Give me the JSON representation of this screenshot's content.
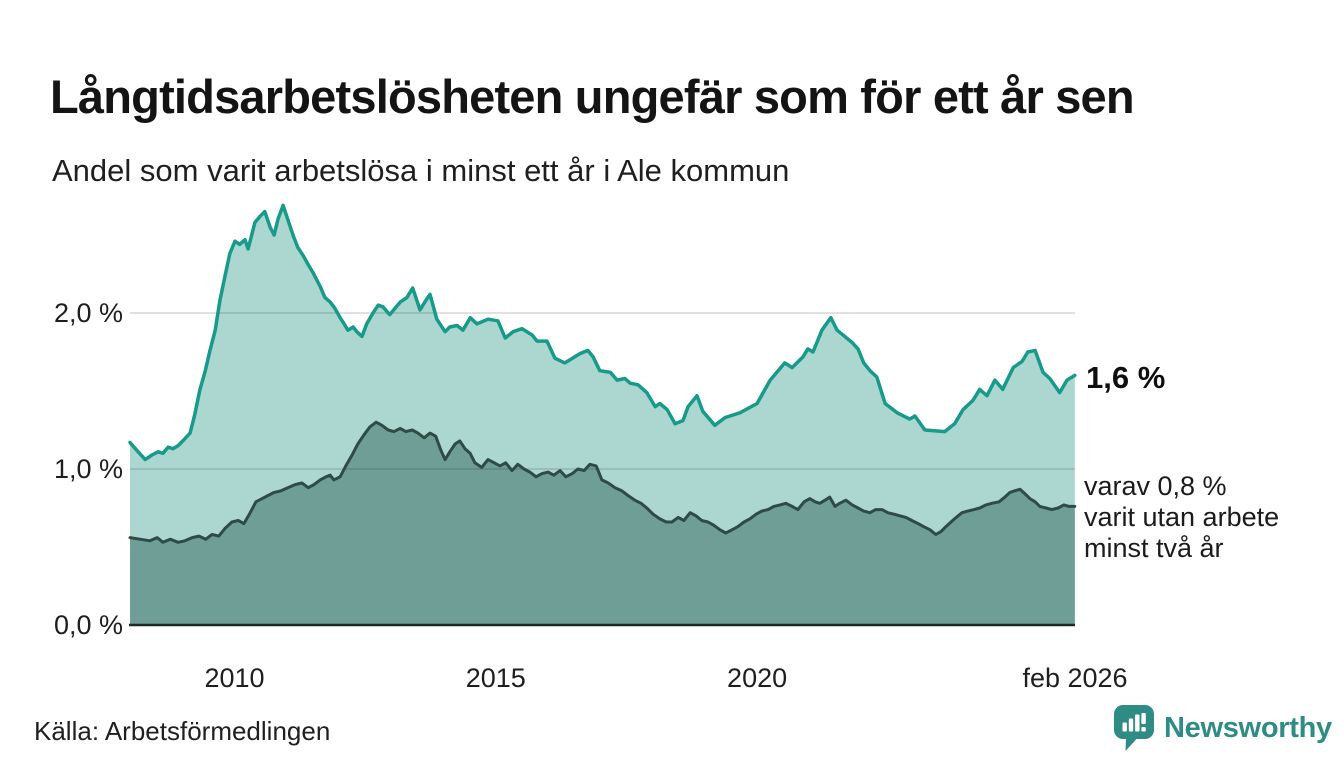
{
  "chart_data": {
    "type": "area",
    "title": "Långtidsarbetslösheten ungefär som för ett år sen",
    "subtitle": "Andel som varit arbetslösa i minst ett år i Ale kommun",
    "unit": "%",
    "x_range": [
      2008.0,
      2026.083
    ],
    "y_range": [
      0,
      2.8
    ],
    "grid": "horizontal",
    "legend_position": "none",
    "x_ticks": [
      {
        "t": 2010,
        "label": "2010"
      },
      {
        "t": 2015,
        "label": "2015"
      },
      {
        "t": 2020,
        "label": "2020"
      },
      {
        "t": 2026.083,
        "label": "feb 2026"
      }
    ],
    "y_ticks": [
      {
        "v": 0,
        "label": "0,0 %"
      },
      {
        "v": 1,
        "label": "1,0 %"
      },
      {
        "v": 2,
        "label": "2,0 %"
      }
    ],
    "series": [
      {
        "name": "Arbetslösa minst ett år",
        "color": "#189a8b",
        "fill": "#abd7d0",
        "width": 3.5,
        "last_value_label": "1,6 %",
        "points": [
          [
            2008.0,
            1.17
          ],
          [
            2008.13,
            1.12
          ],
          [
            2008.29,
            1.06
          ],
          [
            2008.42,
            1.09
          ],
          [
            2008.54,
            1.11
          ],
          [
            2008.63,
            1.1
          ],
          [
            2008.73,
            1.14
          ],
          [
            2008.82,
            1.13
          ],
          [
            2008.92,
            1.15
          ],
          [
            2009.01,
            1.18
          ],
          [
            2009.15,
            1.23
          ],
          [
            2009.24,
            1.35
          ],
          [
            2009.34,
            1.51
          ],
          [
            2009.44,
            1.63
          ],
          [
            2009.53,
            1.76
          ],
          [
            2009.63,
            1.89
          ],
          [
            2009.72,
            2.08
          ],
          [
            2009.82,
            2.24
          ],
          [
            2009.91,
            2.38
          ],
          [
            2010.01,
            2.46
          ],
          [
            2010.1,
            2.44
          ],
          [
            2010.2,
            2.47
          ],
          [
            2010.26,
            2.41
          ],
          [
            2010.39,
            2.58
          ],
          [
            2010.49,
            2.62
          ],
          [
            2010.58,
            2.65
          ],
          [
            2010.68,
            2.55
          ],
          [
            2010.76,
            2.5
          ],
          [
            2010.83,
            2.6
          ],
          [
            2010.93,
            2.69
          ],
          [
            2011.02,
            2.6
          ],
          [
            2011.12,
            2.5
          ],
          [
            2011.21,
            2.42
          ],
          [
            2011.31,
            2.37
          ],
          [
            2011.41,
            2.31
          ],
          [
            2011.5,
            2.26
          ],
          [
            2011.64,
            2.17
          ],
          [
            2011.73,
            2.1
          ],
          [
            2011.83,
            2.07
          ],
          [
            2011.92,
            2.03
          ],
          [
            2012.02,
            1.97
          ],
          [
            2012.08,
            1.94
          ],
          [
            2012.17,
            1.89
          ],
          [
            2012.27,
            1.91
          ],
          [
            2012.34,
            1.88
          ],
          [
            2012.44,
            1.85
          ],
          [
            2012.53,
            1.93
          ],
          [
            2012.65,
            2.0
          ],
          [
            2012.75,
            2.05
          ],
          [
            2012.84,
            2.04
          ],
          [
            2012.97,
            1.99
          ],
          [
            2013.17,
            2.07
          ],
          [
            2013.3,
            2.1
          ],
          [
            2013.41,
            2.16
          ],
          [
            2013.55,
            2.02
          ],
          [
            2013.66,
            2.08
          ],
          [
            2013.74,
            2.12
          ],
          [
            2013.87,
            1.96
          ],
          [
            2014.03,
            1.88
          ],
          [
            2014.12,
            1.91
          ],
          [
            2014.26,
            1.92
          ],
          [
            2014.37,
            1.89
          ],
          [
            2014.51,
            1.97
          ],
          [
            2014.64,
            1.93
          ],
          [
            2014.85,
            1.96
          ],
          [
            2015.04,
            1.95
          ],
          [
            2015.18,
            1.84
          ],
          [
            2015.33,
            1.88
          ],
          [
            2015.5,
            1.9
          ],
          [
            2015.69,
            1.86
          ],
          [
            2015.79,
            1.82
          ],
          [
            2015.98,
            1.82
          ],
          [
            2016.13,
            1.71
          ],
          [
            2016.32,
            1.68
          ],
          [
            2016.42,
            1.7
          ],
          [
            2016.61,
            1.74
          ],
          [
            2016.76,
            1.76
          ],
          [
            2016.86,
            1.72
          ],
          [
            2016.99,
            1.63
          ],
          [
            2017.19,
            1.62
          ],
          [
            2017.32,
            1.57
          ],
          [
            2017.47,
            1.58
          ],
          [
            2017.57,
            1.55
          ],
          [
            2017.72,
            1.54
          ],
          [
            2017.89,
            1.49
          ],
          [
            2018.05,
            1.4
          ],
          [
            2018.14,
            1.42
          ],
          [
            2018.28,
            1.38
          ],
          [
            2018.43,
            1.29
          ],
          [
            2018.58,
            1.31
          ],
          [
            2018.68,
            1.4
          ],
          [
            2018.85,
            1.47
          ],
          [
            2018.96,
            1.37
          ],
          [
            2019.19,
            1.28
          ],
          [
            2019.39,
            1.33
          ],
          [
            2019.67,
            1.36
          ],
          [
            2020.0,
            1.42
          ],
          [
            2020.25,
            1.57
          ],
          [
            2020.53,
            1.68
          ],
          [
            2020.67,
            1.65
          ],
          [
            2020.88,
            1.72
          ],
          [
            2020.97,
            1.77
          ],
          [
            2021.07,
            1.75
          ],
          [
            2021.24,
            1.89
          ],
          [
            2021.41,
            1.97
          ],
          [
            2021.53,
            1.89
          ],
          [
            2021.64,
            1.86
          ],
          [
            2021.82,
            1.81
          ],
          [
            2021.93,
            1.77
          ],
          [
            2022.04,
            1.68
          ],
          [
            2022.16,
            1.63
          ],
          [
            2022.29,
            1.59
          ],
          [
            2022.45,
            1.42
          ],
          [
            2022.68,
            1.36
          ],
          [
            2022.92,
            1.32
          ],
          [
            2023.02,
            1.34
          ],
          [
            2023.21,
            1.25
          ],
          [
            2023.59,
            1.24
          ],
          [
            2023.78,
            1.29
          ],
          [
            2023.94,
            1.38
          ],
          [
            2024.13,
            1.44
          ],
          [
            2024.26,
            1.51
          ],
          [
            2024.4,
            1.47
          ],
          [
            2024.55,
            1.57
          ],
          [
            2024.7,
            1.51
          ],
          [
            2024.9,
            1.65
          ],
          [
            2025.07,
            1.69
          ],
          [
            2025.18,
            1.75
          ],
          [
            2025.32,
            1.76
          ],
          [
            2025.47,
            1.62
          ],
          [
            2025.6,
            1.58
          ],
          [
            2025.79,
            1.49
          ],
          [
            2025.93,
            1.57
          ],
          [
            2026.08,
            1.6
          ]
        ]
      },
      {
        "name": "Arbetslösa minst två år",
        "color": "#2e4b46",
        "fill": "#6f9e97",
        "width": 3,
        "last_value_label": "0,8 %",
        "points": [
          [
            2008.0,
            0.56
          ],
          [
            2008.19,
            0.55
          ],
          [
            2008.38,
            0.54
          ],
          [
            2008.52,
            0.56
          ],
          [
            2008.63,
            0.53
          ],
          [
            2008.77,
            0.55
          ],
          [
            2008.92,
            0.53
          ],
          [
            2009.05,
            0.54
          ],
          [
            2009.19,
            0.56
          ],
          [
            2009.32,
            0.57
          ],
          [
            2009.45,
            0.55
          ],
          [
            2009.57,
            0.58
          ],
          [
            2009.7,
            0.57
          ],
          [
            2009.82,
            0.62
          ],
          [
            2009.95,
            0.66
          ],
          [
            2010.07,
            0.67
          ],
          [
            2010.18,
            0.65
          ],
          [
            2010.3,
            0.72
          ],
          [
            2010.41,
            0.79
          ],
          [
            2010.53,
            0.81
          ],
          [
            2010.64,
            0.83
          ],
          [
            2010.76,
            0.85
          ],
          [
            2010.89,
            0.86
          ],
          [
            2011.02,
            0.88
          ],
          [
            2011.16,
            0.9
          ],
          [
            2011.29,
            0.91
          ],
          [
            2011.41,
            0.88
          ],
          [
            2011.52,
            0.9
          ],
          [
            2011.64,
            0.93
          ],
          [
            2011.75,
            0.95
          ],
          [
            2011.83,
            0.96
          ],
          [
            2011.9,
            0.93
          ],
          [
            2012.02,
            0.95
          ],
          [
            2012.13,
            1.02
          ],
          [
            2012.25,
            1.09
          ],
          [
            2012.36,
            1.16
          ],
          [
            2012.48,
            1.22
          ],
          [
            2012.59,
            1.27
          ],
          [
            2012.71,
            1.3
          ],
          [
            2012.82,
            1.28
          ],
          [
            2012.94,
            1.25
          ],
          [
            2013.05,
            1.24
          ],
          [
            2013.17,
            1.26
          ],
          [
            2013.28,
            1.24
          ],
          [
            2013.4,
            1.25
          ],
          [
            2013.51,
            1.23
          ],
          [
            2013.63,
            1.2
          ],
          [
            2013.74,
            1.23
          ],
          [
            2013.85,
            1.21
          ],
          [
            2013.95,
            1.12
          ],
          [
            2014.03,
            1.06
          ],
          [
            2014.12,
            1.11
          ],
          [
            2014.22,
            1.16
          ],
          [
            2014.31,
            1.18
          ],
          [
            2014.41,
            1.13
          ],
          [
            2014.51,
            1.1
          ],
          [
            2014.6,
            1.04
          ],
          [
            2014.73,
            1.01
          ],
          [
            2014.85,
            1.06
          ],
          [
            2014.97,
            1.04
          ],
          [
            2015.08,
            1.02
          ],
          [
            2015.19,
            1.04
          ],
          [
            2015.31,
            0.99
          ],
          [
            2015.42,
            1.03
          ],
          [
            2015.54,
            1.0
          ],
          [
            2015.65,
            0.98
          ],
          [
            2015.77,
            0.95
          ],
          [
            2015.88,
            0.97
          ],
          [
            2016.0,
            0.98
          ],
          [
            2016.11,
            0.96
          ],
          [
            2016.23,
            0.99
          ],
          [
            2016.34,
            0.95
          ],
          [
            2016.46,
            0.97
          ],
          [
            2016.57,
            1.0
          ],
          [
            2016.69,
            0.99
          ],
          [
            2016.8,
            1.03
          ],
          [
            2016.92,
            1.02
          ],
          [
            2017.03,
            0.93
          ],
          [
            2017.15,
            0.91
          ],
          [
            2017.28,
            0.88
          ],
          [
            2017.41,
            0.86
          ],
          [
            2017.53,
            0.83
          ],
          [
            2017.66,
            0.8
          ],
          [
            2017.78,
            0.78
          ],
          [
            2017.89,
            0.75
          ],
          [
            2018.01,
            0.71
          ],
          [
            2018.14,
            0.68
          ],
          [
            2018.26,
            0.66
          ],
          [
            2018.37,
            0.66
          ],
          [
            2018.49,
            0.69
          ],
          [
            2018.6,
            0.67
          ],
          [
            2018.72,
            0.72
          ],
          [
            2018.83,
            0.7
          ],
          [
            2018.94,
            0.67
          ],
          [
            2019.06,
            0.66
          ],
          [
            2019.17,
            0.64
          ],
          [
            2019.29,
            0.61
          ],
          [
            2019.4,
            0.59
          ],
          [
            2019.52,
            0.61
          ],
          [
            2019.63,
            0.63
          ],
          [
            2019.75,
            0.66
          ],
          [
            2019.86,
            0.68
          ],
          [
            2019.98,
            0.71
          ],
          [
            2020.09,
            0.73
          ],
          [
            2020.21,
            0.74
          ],
          [
            2020.32,
            0.76
          ],
          [
            2020.44,
            0.77
          ],
          [
            2020.55,
            0.78
          ],
          [
            2020.67,
            0.76
          ],
          [
            2020.78,
            0.74
          ],
          [
            2020.9,
            0.79
          ],
          [
            2021.01,
            0.81
          ],
          [
            2021.11,
            0.79
          ],
          [
            2021.2,
            0.78
          ],
          [
            2021.3,
            0.8
          ],
          [
            2021.39,
            0.82
          ],
          [
            2021.49,
            0.76
          ],
          [
            2021.58,
            0.78
          ],
          [
            2021.7,
            0.8
          ],
          [
            2021.82,
            0.77
          ],
          [
            2021.93,
            0.75
          ],
          [
            2022.04,
            0.73
          ],
          [
            2022.16,
            0.72
          ],
          [
            2022.27,
            0.74
          ],
          [
            2022.39,
            0.74
          ],
          [
            2022.5,
            0.72
          ],
          [
            2022.62,
            0.71
          ],
          [
            2022.73,
            0.7
          ],
          [
            2022.85,
            0.69
          ],
          [
            2022.96,
            0.67
          ],
          [
            2023.08,
            0.65
          ],
          [
            2023.19,
            0.63
          ],
          [
            2023.31,
            0.61
          ],
          [
            2023.42,
            0.58
          ],
          [
            2023.52,
            0.6
          ],
          [
            2023.61,
            0.63
          ],
          [
            2023.71,
            0.66
          ],
          [
            2023.81,
            0.69
          ],
          [
            2023.92,
            0.72
          ],
          [
            2024.03,
            0.73
          ],
          [
            2024.15,
            0.74
          ],
          [
            2024.26,
            0.75
          ],
          [
            2024.38,
            0.77
          ],
          [
            2024.49,
            0.78
          ],
          [
            2024.63,
            0.79
          ],
          [
            2024.74,
            0.82
          ],
          [
            2024.84,
            0.85
          ],
          [
            2024.93,
            0.86
          ],
          [
            2025.03,
            0.87
          ],
          [
            2025.13,
            0.84
          ],
          [
            2025.22,
            0.81
          ],
          [
            2025.32,
            0.79
          ],
          [
            2025.41,
            0.76
          ],
          [
            2025.53,
            0.75
          ],
          [
            2025.64,
            0.74
          ],
          [
            2025.76,
            0.75
          ],
          [
            2025.87,
            0.77
          ],
          [
            2025.97,
            0.76
          ],
          [
            2026.08,
            0.76
          ]
        ]
      }
    ],
    "annotations": {
      "current_value": "1,6 %",
      "secondary": "varav 0,8 %\nvarit utan arbete\nminst två år"
    },
    "gridline_color": "rgba(40,40,40,0.14)",
    "baseline_color": "#20292a"
  },
  "footer": {
    "source": "Källa: Arbetsförmedlingen",
    "brand": "Newsworthy",
    "brand_color": "#2e8c85"
  }
}
